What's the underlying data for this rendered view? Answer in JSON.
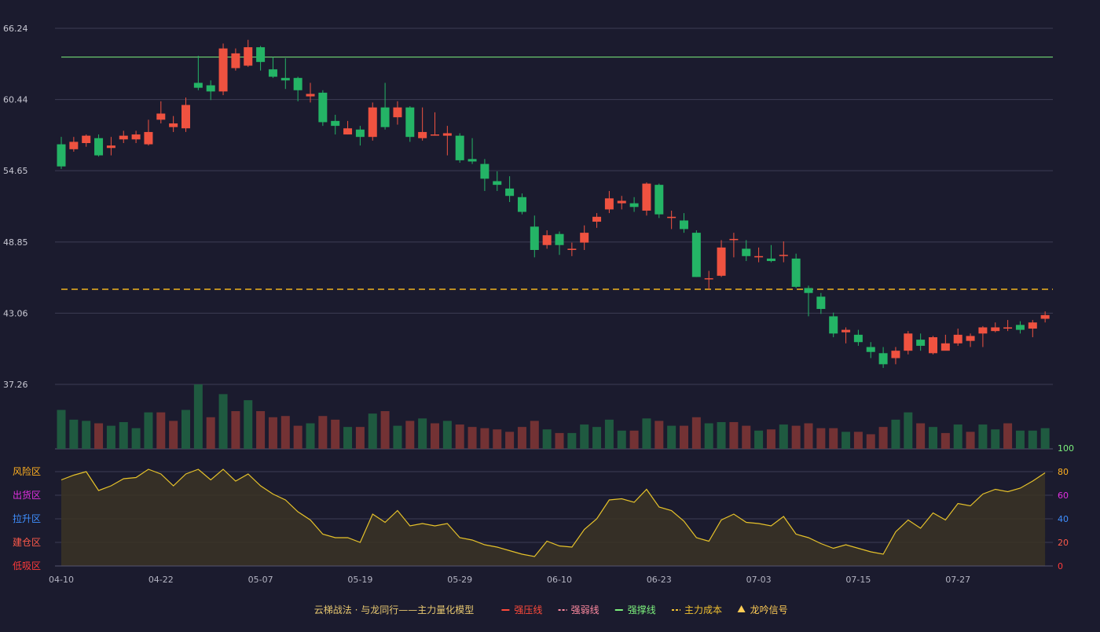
{
  "chart_data": {
    "type": "candlestick",
    "price_axis": {
      "ylim": [
        37.26,
        66.24
      ],
      "ticks": [
        66.24,
        60.44,
        54.65,
        48.85,
        43.06,
        37.26
      ]
    },
    "x_ticks": [
      {
        "index": 0,
        "label": "04-10"
      },
      {
        "index": 8,
        "label": "04-22"
      },
      {
        "index": 16,
        "label": "05-07"
      },
      {
        "index": 24,
        "label": "05-19"
      },
      {
        "index": 32,
        "label": "05-29"
      },
      {
        "index": 40,
        "label": "06-10"
      },
      {
        "index": 48,
        "label": "06-23"
      },
      {
        "index": 56,
        "label": "07-03"
      },
      {
        "index": 64,
        "label": "07-15"
      },
      {
        "index": 72,
        "label": "07-27"
      }
    ],
    "candles": [
      [
        56.8,
        55.0,
        57.4,
        54.8
      ],
      [
        56.4,
        57.0,
        57.4,
        56.2
      ],
      [
        56.9,
        57.5,
        57.6,
        56.6
      ],
      [
        57.3,
        55.9,
        57.6,
        55.8
      ],
      [
        56.5,
        56.7,
        57.4,
        55.9
      ],
      [
        57.2,
        57.5,
        57.9,
        56.9
      ],
      [
        57.2,
        57.6,
        57.9,
        56.9
      ],
      [
        56.8,
        57.8,
        58.8,
        56.7
      ],
      [
        58.8,
        59.3,
        60.3,
        58.5
      ],
      [
        58.2,
        58.5,
        59.1,
        57.8
      ],
      [
        58.1,
        60.0,
        60.6,
        57.8
      ],
      [
        61.8,
        61.4,
        64.0,
        61.2
      ],
      [
        61.6,
        61.1,
        62.0,
        60.4
      ],
      [
        61.1,
        64.6,
        65.0,
        60.8
      ],
      [
        63.0,
        64.2,
        64.6,
        62.8
      ],
      [
        63.2,
        64.7,
        65.3,
        63.1
      ],
      [
        64.7,
        63.5,
        64.8,
        62.8
      ],
      [
        62.9,
        62.3,
        63.9,
        62.2
      ],
      [
        62.2,
        62.0,
        63.8,
        61.3
      ],
      [
        62.2,
        61.2,
        62.3,
        60.3
      ],
      [
        60.7,
        60.9,
        61.8,
        60.2
      ],
      [
        61.0,
        58.6,
        61.2,
        58.3
      ],
      [
        58.7,
        58.3,
        59.2,
        57.6
      ],
      [
        57.6,
        58.1,
        58.7,
        57.6
      ],
      [
        58.0,
        57.4,
        58.3,
        56.7
      ],
      [
        57.4,
        59.8,
        60.2,
        57.1
      ],
      [
        59.8,
        58.2,
        61.8,
        58.0
      ],
      [
        59.0,
        59.8,
        60.3,
        58.4
      ],
      [
        59.8,
        57.4,
        59.9,
        57.0
      ],
      [
        57.3,
        57.8,
        59.8,
        57.1
      ],
      [
        57.6,
        57.6,
        59.4,
        57.5
      ],
      [
        57.5,
        57.7,
        58.3,
        55.9
      ],
      [
        57.5,
        55.5,
        57.7,
        55.3
      ],
      [
        55.6,
        55.4,
        57.3,
        55.2
      ],
      [
        55.2,
        54.0,
        55.6,
        53.0
      ],
      [
        53.8,
        53.5,
        54.6,
        53.0
      ],
      [
        53.2,
        52.6,
        54.2,
        52.1
      ],
      [
        52.5,
        51.3,
        52.8,
        51.1
      ],
      [
        50.1,
        48.2,
        51.0,
        47.6
      ],
      [
        48.6,
        49.4,
        49.8,
        48.3
      ],
      [
        49.5,
        48.6,
        49.7,
        47.8
      ],
      [
        48.2,
        48.3,
        48.8,
        47.7
      ],
      [
        48.8,
        49.6,
        50.2,
        48.2
      ],
      [
        50.5,
        50.9,
        51.2,
        50.0
      ],
      [
        51.5,
        52.4,
        53.0,
        51.2
      ],
      [
        52.0,
        52.2,
        52.6,
        51.5
      ],
      [
        52.0,
        51.7,
        52.5,
        51.3
      ],
      [
        51.4,
        53.6,
        53.7,
        51.0
      ],
      [
        53.5,
        51.1,
        53.6,
        50.8
      ],
      [
        50.8,
        50.9,
        51.4,
        49.9
      ],
      [
        50.6,
        49.9,
        51.2,
        49.6
      ],
      [
        49.6,
        46.0,
        49.8,
        46.0
      ],
      [
        45.9,
        45.9,
        46.5,
        45.0
      ],
      [
        46.1,
        48.4,
        49.0,
        46.0
      ],
      [
        49.0,
        49.1,
        49.6,
        47.6
      ],
      [
        48.3,
        47.7,
        49.0,
        47.3
      ],
      [
        47.6,
        47.7,
        48.4,
        47.2
      ],
      [
        47.5,
        47.3,
        48.6,
        47.2
      ],
      [
        47.8,
        47.8,
        48.9,
        47.2
      ],
      [
        47.5,
        45.2,
        47.9,
        45.1
      ],
      [
        45.1,
        44.7,
        45.3,
        42.8
      ],
      [
        44.4,
        43.4,
        44.7,
        43.0
      ],
      [
        42.8,
        41.4,
        43.1,
        41.1
      ],
      [
        41.5,
        41.7,
        41.9,
        40.6
      ],
      [
        41.3,
        40.7,
        41.7,
        40.4
      ],
      [
        40.3,
        39.9,
        40.7,
        39.4
      ],
      [
        39.8,
        38.9,
        40.3,
        38.6
      ],
      [
        39.4,
        40.0,
        40.3,
        38.9
      ],
      [
        40.0,
        41.4,
        41.6,
        39.7
      ],
      [
        40.9,
        40.4,
        41.4,
        40.0
      ],
      [
        39.8,
        41.1,
        41.2,
        39.7
      ],
      [
        40.0,
        40.6,
        41.3,
        40.2
      ],
      [
        40.6,
        41.3,
        41.8,
        40.4
      ],
      [
        40.8,
        41.2,
        41.4,
        40.3
      ],
      [
        41.4,
        41.9,
        42.0,
        40.3
      ],
      [
        41.6,
        41.9,
        42.3,
        41.5
      ],
      [
        41.8,
        41.9,
        42.5,
        41.6
      ],
      [
        42.1,
        41.7,
        42.4,
        41.4
      ],
      [
        41.8,
        42.3,
        42.5,
        41.1
      ],
      [
        42.6,
        42.9,
        43.2,
        42.3
      ]
    ],
    "volume": [
      [
        32,
        "down"
      ],
      [
        24,
        "down"
      ],
      [
        23,
        "down"
      ],
      [
        21,
        "up"
      ],
      [
        19,
        "down"
      ],
      [
        22,
        "down"
      ],
      [
        17,
        "down"
      ],
      [
        30,
        "down"
      ],
      [
        30,
        "up"
      ],
      [
        23,
        "up"
      ],
      [
        32,
        "down"
      ],
      [
        53,
        "down"
      ],
      [
        26,
        "up"
      ],
      [
        45,
        "down"
      ],
      [
        31,
        "up"
      ],
      [
        40,
        "down"
      ],
      [
        31,
        "up"
      ],
      [
        26,
        "up"
      ],
      [
        27,
        "up"
      ],
      [
        19,
        "up"
      ],
      [
        21,
        "down"
      ],
      [
        27,
        "up"
      ],
      [
        24,
        "up"
      ],
      [
        18,
        "down"
      ],
      [
        18,
        "up"
      ],
      [
        29,
        "down"
      ],
      [
        31,
        "up"
      ],
      [
        19,
        "down"
      ],
      [
        23,
        "up"
      ],
      [
        25,
        "down"
      ],
      [
        21,
        "up"
      ],
      [
        23,
        "down"
      ],
      [
        20,
        "up"
      ],
      [
        18,
        "up"
      ],
      [
        17,
        "up"
      ],
      [
        16,
        "up"
      ],
      [
        14,
        "up"
      ],
      [
        18,
        "up"
      ],
      [
        23,
        "up"
      ],
      [
        16,
        "down"
      ],
      [
        13,
        "up"
      ],
      [
        13,
        "down"
      ],
      [
        20,
        "down"
      ],
      [
        18,
        "down"
      ],
      [
        24,
        "down"
      ],
      [
        15,
        "down"
      ],
      [
        15,
        "up"
      ],
      [
        25,
        "down"
      ],
      [
        23,
        "up"
      ],
      [
        19,
        "down"
      ],
      [
        19,
        "up"
      ],
      [
        26,
        "up"
      ],
      [
        21,
        "down"
      ],
      [
        22,
        "down"
      ],
      [
        22,
        "up"
      ],
      [
        19,
        "up"
      ],
      [
        15,
        "down"
      ],
      [
        16,
        "up"
      ],
      [
        20,
        "down"
      ],
      [
        19,
        "up"
      ],
      [
        21,
        "up"
      ],
      [
        17,
        "up"
      ],
      [
        17,
        "up"
      ],
      [
        14,
        "down"
      ],
      [
        14,
        "up"
      ],
      [
        12,
        "up"
      ],
      [
        18,
        "up"
      ],
      [
        24,
        "down"
      ],
      [
        30,
        "down"
      ],
      [
        21,
        "up"
      ],
      [
        18,
        "down"
      ],
      [
        13,
        "up"
      ],
      [
        20,
        "down"
      ],
      [
        14,
        "up"
      ],
      [
        20,
        "down"
      ],
      [
        16,
        "down"
      ],
      [
        21,
        "up"
      ],
      [
        15,
        "down"
      ],
      [
        15,
        "down"
      ],
      [
        17,
        "down"
      ]
    ],
    "indicator_axis": {
      "ylim": [
        0,
        100
      ],
      "ticks": [
        100,
        80,
        60,
        40,
        20,
        0
      ]
    },
    "indicator": [
      73,
      77,
      80,
      64,
      68,
      74,
      75,
      82,
      78,
      68,
      78,
      82,
      73,
      82,
      72,
      78,
      68,
      61,
      56,
      46,
      39,
      27,
      24,
      24,
      20,
      44,
      37,
      47,
      34,
      36,
      34,
      36,
      24,
      22,
      18,
      16,
      13,
      10,
      8,
      21,
      17,
      16,
      31,
      40,
      56,
      57,
      54,
      65,
      50,
      47,
      38,
      24,
      21,
      39,
      44,
      37,
      36,
      34,
      42,
      27,
      24,
      19,
      15,
      18,
      15,
      12,
      10,
      29,
      39,
      32,
      45,
      39,
      53,
      51,
      61,
      65,
      63,
      66,
      72,
      79
    ],
    "zone_labels": [
      {
        "label": "风险区",
        "color": "#ffb020"
      },
      {
        "label": "出货区",
        "color": "#e030e0"
      },
      {
        "label": "拉升区",
        "color": "#3f8fff"
      },
      {
        "label": "建仓区",
        "color": "#ff5a4a"
      },
      {
        "label": "低吸区",
        "color": "#ff3a3a"
      }
    ],
    "resistance_line": 63.9,
    "cost_line": 45.0,
    "colors": {
      "up": "#ef5240",
      "down": "#24b466",
      "vol_up": "#733234",
      "vol_down": "#1f5a40",
      "grid": "#3c3c54",
      "support": "#7cf07c",
      "cost": "#f0b31e",
      "indicator_line": "#e6c22a",
      "indicator_fill": "#3a3324"
    },
    "legend": [
      {
        "label": "云梯战法 · 与龙同行——主力量化模型",
        "marker": "",
        "color": "#e8c870"
      },
      {
        "label": "强压线",
        "marker": "line",
        "color": "#ff4a3a"
      },
      {
        "label": "强弱线",
        "marker": "dash",
        "color": "#ff8aa0"
      },
      {
        "label": "强撑线",
        "marker": "line",
        "color": "#7cf07c"
      },
      {
        "label": "主力成本",
        "marker": "dash",
        "color": "#f0c030"
      },
      {
        "label": "龙吟信号",
        "marker": "triangle",
        "color": "#ffcc55"
      }
    ]
  }
}
